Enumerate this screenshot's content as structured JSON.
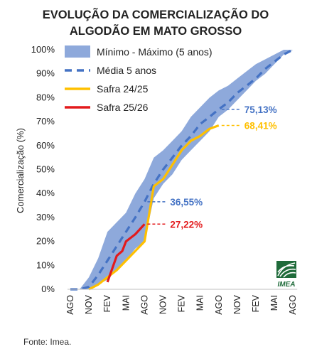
{
  "chart_data": {
    "type": "line",
    "title_line1": "EVOLUÇÃO DA COMERCIALIZAÇÃO DO",
    "title_line2": "ALGODÃO EM MATO GROSSO",
    "ylabel": "Comercialização (%)",
    "xlabel": "",
    "ylim": [
      0,
      100
    ],
    "y_ticks": [
      "0%",
      "10%",
      "20%",
      "30%",
      "40%",
      "50%",
      "60%",
      "70%",
      "80%",
      "90%",
      "100%"
    ],
    "x_ticks": [
      "AGO",
      "NOV",
      "FEV",
      "MAI",
      "AGO",
      "NOV",
      "FEV",
      "MAI",
      "AGO",
      "NOV",
      "FEV",
      "MAI",
      "AGO"
    ],
    "grid": false,
    "legend_position": "top-left",
    "series": [
      {
        "name": "Mínimo - Máximo (5 anos)",
        "kind": "band",
        "color": "#8ea9db",
        "x": [
          0,
          0.5,
          1,
          1.5,
          2,
          2.5,
          3,
          3.5,
          4,
          4.5,
          5,
          5.5,
          6,
          6.5,
          7,
          7.5,
          8,
          8.5,
          9,
          9.5,
          10,
          10.5,
          11,
          11.5,
          12
        ],
        "upper": [
          0,
          0,
          5,
          13,
          24,
          28,
          32,
          40,
          46,
          55,
          58,
          62,
          66,
          72,
          76,
          80,
          83,
          85,
          88,
          91,
          94,
          96,
          98,
          100,
          100
        ],
        "lower": [
          0,
          0,
          0,
          2,
          4,
          8,
          12,
          17,
          20,
          38,
          44,
          48,
          54,
          58,
          62,
          66,
          72,
          75,
          79,
          83,
          87,
          90,
          94,
          98,
          100
        ]
      },
      {
        "name": "Média 5 anos",
        "kind": "line",
        "style": "dashed",
        "color": "#4472c4",
        "x": [
          0,
          0.5,
          1,
          1.5,
          2,
          2.5,
          3,
          3.5,
          4,
          4.5,
          5,
          5.5,
          6,
          6.5,
          7,
          7.5,
          8,
          8.5,
          9,
          9.5,
          10,
          10.5,
          11,
          11.5,
          12
        ],
        "values": [
          0,
          0,
          1,
          6,
          12,
          18,
          24,
          30,
          36.55,
          44,
          50,
          55,
          60,
          64,
          69,
          72,
          75.13,
          78,
          82,
          85,
          88,
          92,
          95,
          98,
          100
        ]
      },
      {
        "name": "Safra 24/25",
        "kind": "line",
        "color": "#ffc000",
        "x": [
          1,
          1.5,
          2,
          2.5,
          3,
          3.5,
          4,
          4.5,
          5,
          5.5,
          6,
          6.5,
          7,
          7.5,
          8
        ],
        "values": [
          0,
          2,
          5,
          8,
          12,
          16,
          20,
          43,
          46,
          52,
          58,
          62,
          64,
          67,
          68.41
        ]
      },
      {
        "name": "Safra 25/26",
        "kind": "line",
        "color": "#e31a1c",
        "x": [
          2,
          2.5,
          2.8,
          3,
          3.5,
          4
        ],
        "values": [
          3,
          14,
          16,
          20,
          23,
          27.22
        ]
      }
    ],
    "annotations": [
      {
        "text": "75,13%",
        "x": 8,
        "y": 75.13,
        "color": "#4472c4"
      },
      {
        "text": "68,41%",
        "x": 8,
        "y": 68.41,
        "color": "#ffc000"
      },
      {
        "text": "36,55%",
        "x": 4,
        "y": 36.55,
        "color": "#4472c4"
      },
      {
        "text": "27,22%",
        "x": 4,
        "y": 27.22,
        "color": "#e31a1c"
      }
    ]
  },
  "logo": {
    "text": "IMEA",
    "color": "#1f6b3a"
  },
  "source": "Fonte: Imea."
}
